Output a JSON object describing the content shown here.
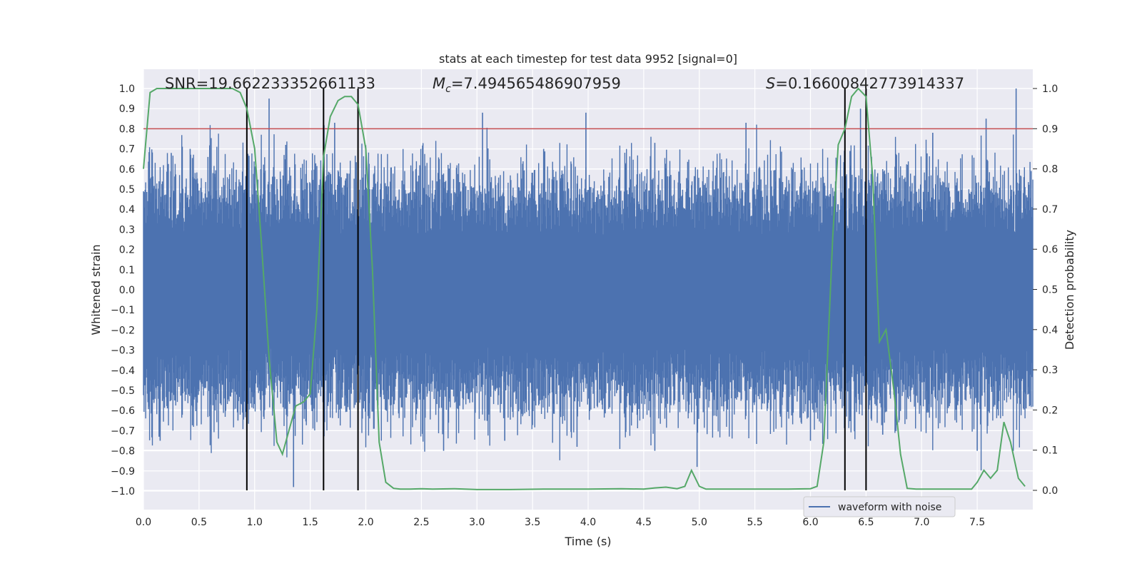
{
  "chart_data": {
    "type": "line",
    "title": "stats at each timestep for test data 9952 [signal=0]",
    "xlabel": "Time (s)",
    "ylabel_left": "Whitened strain",
    "ylabel_right": "Detection probability",
    "xlim": [
      0.0,
      8.0
    ],
    "ylim_left": [
      -1.08,
      1.1
    ],
    "ylim_right": [
      -0.04,
      1.04
    ],
    "xticks": [
      "0.0",
      "0.5",
      "1.0",
      "1.5",
      "2.0",
      "2.5",
      "3.0",
      "3.5",
      "4.0",
      "4.5",
      "5.0",
      "5.5",
      "6.0",
      "6.5",
      "7.0",
      "7.5"
    ],
    "xtick_values": [
      0.0,
      0.5,
      1.0,
      1.5,
      2.0,
      2.5,
      3.0,
      3.5,
      4.0,
      4.5,
      5.0,
      5.5,
      6.0,
      6.5,
      7.0,
      7.5
    ],
    "yticks_left": [
      "1.0",
      "0.9",
      "0.8",
      "0.7",
      "0.6",
      "0.5",
      "0.4",
      "0.3",
      "0.2",
      "0.1",
      "0.0",
      "−0.1",
      "−0.2",
      "−0.3",
      "−0.4",
      "−0.5",
      "−0.6",
      "−0.7",
      "−0.8",
      "−0.9",
      "−1.0"
    ],
    "ytick_values_left": [
      1.0,
      0.9,
      0.8,
      0.7,
      0.6,
      0.5,
      0.4,
      0.3,
      0.2,
      0.1,
      0.0,
      -0.1,
      -0.2,
      -0.3,
      -0.4,
      -0.5,
      -0.6,
      -0.7,
      -0.8,
      -0.9,
      -1.0
    ],
    "yticks_right": [
      "1.0",
      "0.9",
      "0.8",
      "0.7",
      "0.6",
      "0.5",
      "0.4",
      "0.3",
      "0.2",
      "0.1",
      "0.0"
    ],
    "ytick_values_right": [
      1.0,
      0.9,
      0.8,
      0.7,
      0.6,
      0.5,
      0.4,
      0.3,
      0.2,
      0.1,
      0.0
    ],
    "annotations": {
      "snr": "SNR=19.662233352661133",
      "mc_symbol": "M",
      "mc_sub": "c",
      "mc_value": "=7.494565486907959",
      "s_symbol": "S",
      "s_value": "=0.16600842773914337"
    },
    "legend": {
      "label": "waveform with noise",
      "location": "lower-right"
    },
    "threshold_line": {
      "value": 0.8,
      "axis": "left",
      "color": "#c44e52"
    },
    "vertical_lines": [
      0.93,
      1.62,
      1.93,
      6.31,
      6.5
    ],
    "series": [
      {
        "name": "waveform with noise",
        "axis": "left",
        "color": "#4c72b0",
        "style": "dense noise, typical amplitude about ±0.45, peaks up to about ±1.0",
        "spikes": [
          [
            0.07,
            0.48
          ],
          [
            0.25,
            0.68
          ],
          [
            0.42,
            0.7
          ],
          [
            0.58,
            0.66
          ],
          [
            1.13,
            0.95
          ],
          [
            1.28,
            0.72
          ],
          [
            1.72,
            0.83
          ],
          [
            2.45,
            0.6
          ],
          [
            3.05,
            0.88
          ],
          [
            3.6,
            0.7
          ],
          [
            3.98,
            0.88
          ],
          [
            4.6,
            0.73
          ],
          [
            5.42,
            0.83
          ],
          [
            6.45,
            0.9
          ],
          [
            7.1,
            0.78
          ],
          [
            7.58,
            0.85
          ],
          [
            7.85,
            1.0
          ],
          [
            1.35,
            -0.98
          ],
          [
            0.15,
            -0.75
          ],
          [
            0.85,
            -0.65
          ],
          [
            2.7,
            -0.8
          ],
          [
            3.25,
            -0.75
          ],
          [
            3.9,
            -0.78
          ],
          [
            4.6,
            -0.8
          ],
          [
            4.98,
            -0.88
          ],
          [
            6.0,
            -0.75
          ],
          [
            6.65,
            -0.72
          ],
          [
            7.5,
            -0.8
          ]
        ]
      },
      {
        "name": "detection probability",
        "axis": "right",
        "color": "#55a868",
        "x": [
          0.0,
          0.06,
          0.12,
          0.2,
          0.3,
          0.4,
          0.5,
          0.6,
          0.7,
          0.8,
          0.87,
          0.93,
          1.0,
          1.06,
          1.13,
          1.2,
          1.25,
          1.31,
          1.37,
          1.44,
          1.5,
          1.56,
          1.62,
          1.68,
          1.75,
          1.81,
          1.87,
          1.93,
          2.0,
          2.06,
          2.12,
          2.18,
          2.25,
          2.31,
          2.4,
          2.5,
          2.6,
          2.8,
          3.0,
          3.3,
          3.6,
          4.0,
          4.3,
          4.5,
          4.6,
          4.7,
          4.8,
          4.87,
          4.93,
          5.0,
          5.06,
          5.2,
          5.5,
          5.8,
          6.0,
          6.06,
          6.12,
          6.2,
          6.25,
          6.31,
          6.37,
          6.43,
          6.5,
          6.56,
          6.62,
          6.68,
          6.75,
          6.81,
          6.87,
          6.95,
          7.1,
          7.3,
          7.45,
          7.5,
          7.56,
          7.62,
          7.68,
          7.74,
          7.8,
          7.87,
          7.93
        ],
        "y": [
          0.8,
          0.99,
          1.0,
          1.0,
          1.0,
          1.0,
          1.0,
          1.0,
          1.0,
          1.0,
          0.99,
          0.95,
          0.85,
          0.62,
          0.33,
          0.12,
          0.09,
          0.15,
          0.21,
          0.22,
          0.24,
          0.45,
          0.83,
          0.93,
          0.97,
          0.98,
          0.98,
          0.96,
          0.85,
          0.55,
          0.12,
          0.02,
          0.005,
          0.003,
          0.003,
          0.004,
          0.003,
          0.004,
          0.002,
          0.002,
          0.003,
          0.003,
          0.004,
          0.003,
          0.006,
          0.008,
          0.004,
          0.01,
          0.05,
          0.01,
          0.003,
          0.003,
          0.003,
          0.003,
          0.004,
          0.01,
          0.12,
          0.63,
          0.86,
          0.9,
          0.98,
          1.0,
          0.98,
          0.78,
          0.37,
          0.4,
          0.25,
          0.09,
          0.005,
          0.003,
          0.003,
          0.003,
          0.003,
          0.02,
          0.05,
          0.03,
          0.05,
          0.17,
          0.12,
          0.03,
          0.01
        ]
      }
    ]
  }
}
